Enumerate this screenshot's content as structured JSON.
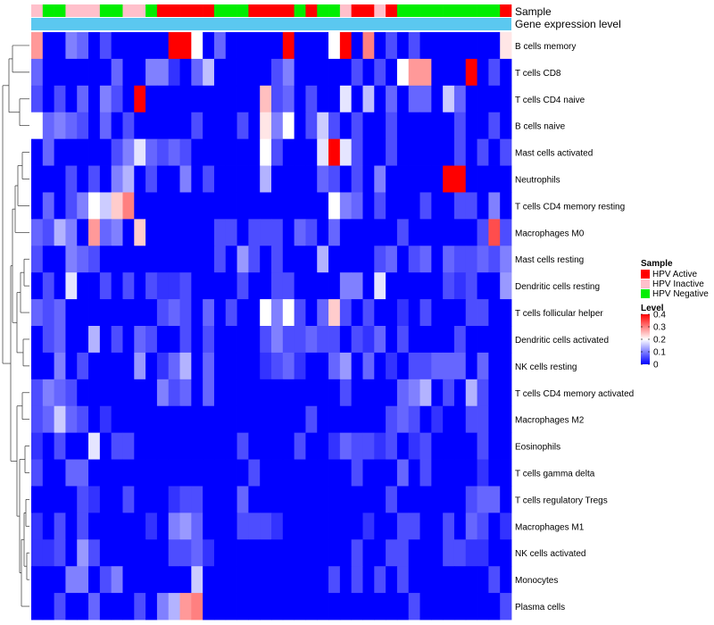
{
  "chart_data": {
    "type": "heatmap",
    "annotation_labels": {
      "sample": "Sample",
      "gene_expression": "Gene expression level"
    },
    "sample_annotation": [
      "HPV Inactive",
      "HPV Negative",
      "HPV Negative",
      "HPV Inactive",
      "HPV Inactive",
      "HPV Inactive",
      "HPV Negative",
      "HPV Negative",
      "HPV Inactive",
      "HPV Inactive",
      "HPV Negative",
      "HPV Active",
      "HPV Active",
      "HPV Active",
      "HPV Active",
      "HPV Active",
      "HPV Negative",
      "HPV Negative",
      "HPV Negative",
      "HPV Active",
      "HPV Active",
      "HPV Active",
      "HPV Active",
      "HPV Negative",
      "HPV Active",
      "HPV Negative",
      "HPV Negative",
      "HPV Inactive",
      "HPV Active",
      "HPV Active",
      "HPV Inactive",
      "HPV Active",
      "HPV Negative",
      "HPV Negative",
      "HPV Negative",
      "HPV Negative",
      "HPV Negative",
      "HPV Negative",
      "HPV Negative",
      "HPV Negative",
      "HPV Negative",
      "HPV Active"
    ],
    "sample_colors": {
      "HPV Active": "#ff0000",
      "HPV Inactive": "#ffc0cb",
      "HPV Negative": "#00ee00"
    },
    "gene_expression_color": "#5bc8f0",
    "rows": [
      "B cells memory",
      "T cells CD8",
      "T cells CD4 naive",
      "B cells naive",
      "Mast cells activated",
      "Neutrophils",
      "T cells CD4 memory resting",
      "Macrophages M0",
      "Mast cells resting",
      "Dendritic cells resting",
      "T cells follicular helper",
      "Dendritic cells activated",
      "NK cells resting",
      "T cells CD4 memory activated",
      "Macrophages M2",
      "Eosinophils",
      "T cells gamma delta",
      "T cells regulatory  Tregs",
      "Macrophages M1",
      "NK cells activated",
      "Monocytes",
      "Plasma cells"
    ],
    "values": [
      [
        0.28,
        0,
        0,
        0.1,
        0.08,
        0,
        0.06,
        0,
        0,
        0,
        0,
        0,
        0.4,
        0.4,
        0.2,
        0,
        0.08,
        0,
        0,
        0,
        0,
        0,
        0.4,
        0,
        0,
        0,
        0.2,
        0.4,
        0,
        0.3,
        0,
        0.06,
        0,
        0.06,
        0,
        0,
        0,
        0,
        0,
        0,
        0,
        0.22
      ],
      [
        0.08,
        0,
        0,
        0,
        0,
        0,
        0,
        0.08,
        0,
        0,
        0.1,
        0.1,
        0.04,
        0,
        0.08,
        0.15,
        0,
        0,
        0,
        0,
        0,
        0.06,
        0.1,
        0,
        0,
        0,
        0,
        0,
        0.06,
        0,
        0.06,
        0,
        0.2,
        0.28,
        0.28,
        0,
        0,
        0,
        0.4,
        0,
        0.06,
        0
      ],
      [
        0.06,
        0,
        0.06,
        0,
        0.08,
        0,
        0.1,
        0.06,
        0,
        0.4,
        0,
        0,
        0,
        0,
        0,
        0,
        0,
        0,
        0,
        0,
        0.25,
        0.06,
        0.08,
        0,
        0.06,
        0,
        0,
        0.18,
        0,
        0.15,
        0,
        0.08,
        0,
        0.08,
        0.08,
        0,
        0.16,
        0.08,
        0,
        0,
        0,
        0
      ],
      [
        0.2,
        0.08,
        0.1,
        0.08,
        0.06,
        0,
        0.08,
        0,
        0.06,
        0,
        0,
        0,
        0,
        0,
        0.06,
        0,
        0,
        0,
        0.06,
        0,
        0.22,
        0.1,
        0.2,
        0,
        0.06,
        0.16,
        0.06,
        0,
        0.06,
        0,
        0,
        0.06,
        0,
        0,
        0,
        0,
        0,
        0.06,
        0,
        0,
        0.06,
        0
      ],
      [
        0,
        0.08,
        0,
        0,
        0,
        0,
        0,
        0.06,
        0.1,
        0.18,
        0.08,
        0.06,
        0.08,
        0.06,
        0,
        0,
        0,
        0,
        0,
        0,
        0.2,
        0.06,
        0,
        0,
        0,
        0.18,
        0.4,
        0.18,
        0.06,
        0,
        0,
        0.06,
        0,
        0,
        0,
        0,
        0,
        0.06,
        0,
        0.06,
        0,
        0.06
      ],
      [
        0,
        0,
        0,
        0.06,
        0,
        0.06,
        0,
        0.1,
        0.14,
        0,
        0.06,
        0,
        0,
        0.1,
        0,
        0.06,
        0,
        0,
        0,
        0,
        0.14,
        0,
        0,
        0,
        0,
        0.08,
        0.06,
        0,
        0.06,
        0,
        0.1,
        0,
        0,
        0,
        0,
        0,
        0.4,
        0.4,
        0,
        0,
        0,
        0
      ],
      [
        0,
        0.08,
        0,
        0.06,
        0.1,
        0.2,
        0.16,
        0.24,
        0.3,
        0,
        0,
        0,
        0,
        0,
        0,
        0,
        0,
        0,
        0,
        0,
        0,
        0,
        0,
        0,
        0,
        0,
        0.2,
        0.1,
        0.08,
        0,
        0.06,
        0,
        0,
        0,
        0.06,
        0,
        0,
        0.06,
        0.06,
        0,
        0.1,
        0
      ],
      [
        0.08,
        0.06,
        0.14,
        0.1,
        0,
        0.28,
        0.08,
        0.1,
        0,
        0.24,
        0,
        0,
        0,
        0,
        0,
        0,
        0.06,
        0.06,
        0,
        0.06,
        0.06,
        0.06,
        0,
        0.08,
        0.06,
        0,
        0.08,
        0,
        0,
        0,
        0,
        0,
        0.06,
        0,
        0,
        0,
        0,
        0,
        0,
        0.06,
        0.34,
        0.06
      ],
      [
        0.06,
        0,
        0,
        0.1,
        0.08,
        0.06,
        0,
        0,
        0,
        0,
        0,
        0,
        0,
        0,
        0,
        0,
        0.06,
        0,
        0.12,
        0.06,
        0,
        0.06,
        0,
        0,
        0,
        0.14,
        0,
        0,
        0,
        0,
        0.06,
        0.08,
        0,
        0.06,
        0.08,
        0,
        0.08,
        0.06,
        0.06,
        0.08,
        0.06,
        0.1
      ],
      [
        0,
        0.06,
        0,
        0.18,
        0,
        0,
        0.06,
        0,
        0.06,
        0,
        0.06,
        0.04,
        0.04,
        0.06,
        0,
        0,
        0,
        0,
        0.06,
        0,
        0,
        0.06,
        0.06,
        0,
        0,
        0,
        0,
        0.1,
        0.1,
        0,
        0.18,
        0,
        0,
        0,
        0,
        0,
        0.06,
        0.04,
        0.06,
        0,
        0,
        0.12
      ],
      [
        0.08,
        0.06,
        0.08,
        0,
        0,
        0,
        0,
        0,
        0,
        0,
        0,
        0.06,
        0.08,
        0.06,
        0,
        0.08,
        0,
        0.06,
        0,
        0,
        0.2,
        0.1,
        0.2,
        0.06,
        0,
        0.08,
        0.24,
        0.06,
        0,
        0.06,
        0,
        0,
        0.04,
        0,
        0.06,
        0,
        0,
        0,
        0.06,
        0.06,
        0,
        0
      ],
      [
        0,
        0.06,
        0.08,
        0,
        0,
        0.14,
        0,
        0.06,
        0,
        0.08,
        0.06,
        0,
        0,
        0.06,
        0,
        0.06,
        0,
        0,
        0,
        0,
        0.06,
        0.1,
        0.06,
        0.06,
        0.08,
        0.06,
        0.06,
        0,
        0.06,
        0.04,
        0.08,
        0,
        0.06,
        0,
        0,
        0,
        0,
        0.06,
        0,
        0,
        0,
        0
      ],
      [
        0,
        0,
        0.1,
        0,
        0.06,
        0,
        0,
        0,
        0,
        0.12,
        0,
        0.04,
        0.08,
        0.14,
        0,
        0.08,
        0,
        0,
        0,
        0,
        0.04,
        0.06,
        0.08,
        0.04,
        0,
        0,
        0.08,
        0.12,
        0,
        0.08,
        0,
        0.04,
        0,
        0.06,
        0.06,
        0.08,
        0.08,
        0.08,
        0,
        0.08,
        0,
        0
      ],
      [
        0.06,
        0.1,
        0.08,
        0.06,
        0,
        0,
        0,
        0,
        0,
        0,
        0,
        0.1,
        0.06,
        0.08,
        0,
        0.08,
        0,
        0,
        0,
        0,
        0,
        0,
        0,
        0,
        0,
        0,
        0,
        0.06,
        0,
        0,
        0,
        0,
        0.08,
        0.1,
        0.14,
        0,
        0.06,
        0,
        0.14,
        0.06,
        0,
        0
      ],
      [
        0.06,
        0.08,
        0.16,
        0.08,
        0.06,
        0,
        0.04,
        0,
        0,
        0,
        0,
        0,
        0,
        0,
        0,
        0,
        0,
        0,
        0,
        0,
        0,
        0,
        0,
        0,
        0.06,
        0,
        0,
        0,
        0,
        0,
        0,
        0.06,
        0.08,
        0.06,
        0,
        0.04,
        0,
        0,
        0.06,
        0.06,
        0,
        0
      ],
      [
        0.04,
        0,
        0.06,
        0,
        0,
        0.18,
        0,
        0.06,
        0.06,
        0,
        0,
        0,
        0,
        0,
        0,
        0,
        0,
        0,
        0.06,
        0,
        0,
        0,
        0,
        0.06,
        0,
        0,
        0.04,
        0.08,
        0.06,
        0.06,
        0.04,
        0.06,
        0,
        0.04,
        0.06,
        0,
        0,
        0,
        0,
        0.06,
        0,
        0
      ],
      [
        0.06,
        0,
        0,
        0.08,
        0.08,
        0,
        0,
        0,
        0,
        0,
        0,
        0,
        0,
        0,
        0,
        0,
        0,
        0,
        0,
        0.06,
        0,
        0,
        0,
        0,
        0,
        0,
        0,
        0,
        0.06,
        0,
        0,
        0,
        0.08,
        0,
        0.06,
        0,
        0,
        0,
        0,
        0.04,
        0,
        0
      ],
      [
        0,
        0,
        0,
        0,
        0.06,
        0.04,
        0,
        0,
        0.06,
        0,
        0,
        0,
        0.04,
        0.06,
        0.06,
        0,
        0,
        0,
        0.08,
        0,
        0,
        0,
        0,
        0,
        0,
        0,
        0,
        0,
        0,
        0,
        0,
        0.06,
        0,
        0,
        0,
        0,
        0,
        0,
        0.06,
        0.08,
        0.08,
        0
      ],
      [
        0.04,
        0,
        0.06,
        0,
        0.06,
        0,
        0,
        0,
        0,
        0,
        0.04,
        0,
        0.1,
        0.12,
        0.08,
        0,
        0,
        0,
        0.06,
        0.06,
        0.06,
        0.04,
        0,
        0,
        0,
        0,
        0,
        0,
        0,
        0.04,
        0,
        0,
        0.06,
        0.06,
        0,
        0,
        0.06,
        0,
        0.08,
        0.06,
        0,
        0.04
      ],
      [
        0.04,
        0.04,
        0.06,
        0,
        0.12,
        0.06,
        0,
        0,
        0,
        0,
        0,
        0,
        0.06,
        0.06,
        0.08,
        0.04,
        0,
        0,
        0,
        0,
        0,
        0,
        0,
        0,
        0,
        0,
        0,
        0,
        0.06,
        0,
        0,
        0.06,
        0.06,
        0,
        0,
        0,
        0.06,
        0.06,
        0.04,
        0.04,
        0,
        0
      ],
      [
        0,
        0,
        0,
        0.1,
        0.1,
        0,
        0.06,
        0.1,
        0,
        0,
        0,
        0,
        0,
        0,
        0.16,
        0,
        0,
        0,
        0,
        0,
        0,
        0,
        0,
        0,
        0,
        0,
        0.06,
        0,
        0.06,
        0,
        0.06,
        0,
        0.06,
        0,
        0,
        0,
        0,
        0,
        0,
        0,
        0.06,
        0
      ],
      [
        0,
        0,
        0.06,
        0,
        0,
        0.08,
        0,
        0,
        0,
        0.06,
        0,
        0.1,
        0.14,
        0.28,
        0.3,
        0,
        0,
        0,
        0,
        0,
        0,
        0,
        0,
        0,
        0,
        0,
        0,
        0,
        0,
        0,
        0,
        0,
        0,
        0.06,
        0,
        0,
        0,
        0,
        0,
        0,
        0,
        0.06
      ]
    ],
    "legend": {
      "sample_title": "Sample",
      "sample_entries": [
        "HPV Active",
        "HPV Inactive",
        "HPV Negative"
      ],
      "level_title": "Level",
      "level_ticks": [
        "0.4",
        "0.3",
        "0.2",
        "0.1",
        "0"
      ],
      "level_range": [
        0,
        0.4
      ]
    },
    "color_scale": {
      "low": "#0000ff",
      "mid": "#ffffff",
      "high": "#ff0000",
      "min": 0,
      "max": 0.4
    },
    "row_dendrogram": true
  }
}
